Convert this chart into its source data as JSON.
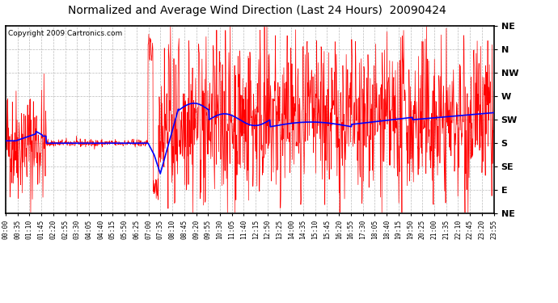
{
  "title": "Normalized and Average Wind Direction (Last 24 Hours)  20090424",
  "copyright": "Copyright 2009 Cartronics.com",
  "ytick_labels": [
    "NE",
    "N",
    "NW",
    "W",
    "SW",
    "S",
    "SE",
    "E",
    "NE"
  ],
  "ytick_values": [
    8,
    7,
    6,
    5,
    4,
    3,
    2,
    1,
    0
  ],
  "ylim": [
    0,
    8
  ],
  "background_color": "#ffffff",
  "grid_color": "#bbbbbb",
  "red_color": "#ff0000",
  "blue_color": "#0000ff",
  "title_fontsize": 10,
  "xtick_labels": [
    "00:00",
    "00:35",
    "01:10",
    "01:45",
    "02:20",
    "02:55",
    "03:30",
    "04:05",
    "04:40",
    "05:15",
    "05:50",
    "06:25",
    "07:00",
    "07:35",
    "08:10",
    "08:45",
    "09:20",
    "09:55",
    "10:30",
    "11:05",
    "11:40",
    "12:15",
    "12:50",
    "13:25",
    "14:00",
    "14:35",
    "15:10",
    "15:45",
    "16:20",
    "16:55",
    "17:30",
    "18:05",
    "18:40",
    "19:15",
    "19:50",
    "20:25",
    "21:00",
    "21:35",
    "22:10",
    "22:45",
    "23:20",
    "23:55"
  ]
}
